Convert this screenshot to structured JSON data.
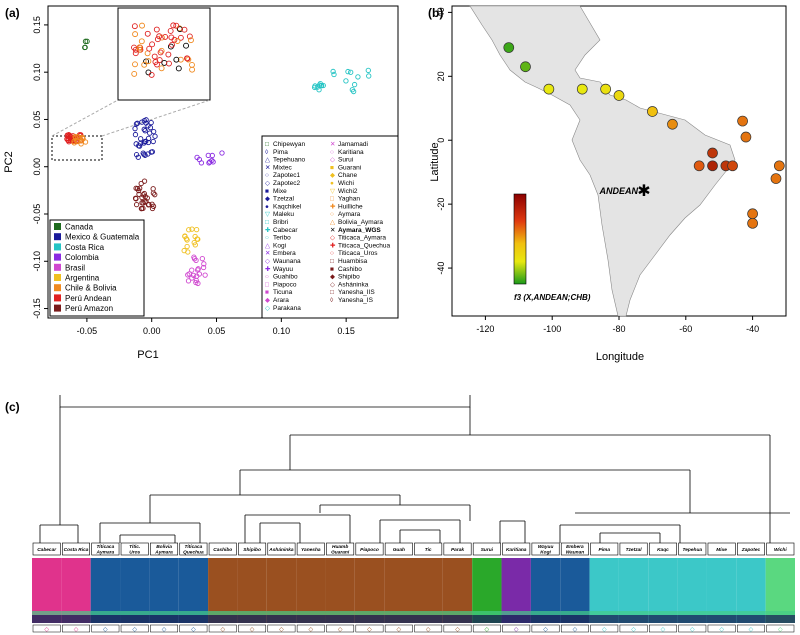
{
  "figure": {
    "panels": [
      {
        "label": "(a)",
        "type": "scatter",
        "xlabel": "PC1",
        "ylabel": "PC2",
        "xlim": [
          -0.08,
          0.19
        ],
        "ylim": [
          -0.16,
          0.17
        ],
        "x_ticks": [
          "-0.05",
          "0.00",
          "0.05",
          "0.10",
          "0.15"
        ],
        "y_ticks": [
          "0.15",
          "0.10",
          "0.05",
          "0.00",
          "-0.05",
          "-0.10",
          "-0.15"
        ],
        "region_legend": [
          {
            "name": "Canada",
            "color": "#1e6b1e"
          },
          {
            "name": "Mexico & Guatemala",
            "color": "#1a1a9a"
          },
          {
            "name": "Costa Rica",
            "color": "#24c4c4"
          },
          {
            "name": "Colombia",
            "color": "#8a2be2"
          },
          {
            "name": "Brasil",
            "color": "#d048d0"
          },
          {
            "name": "Argentina",
            "color": "#f0c020"
          },
          {
            "name": "Chile & Bolivia",
            "color": "#f08a20"
          },
          {
            "name": "Perú Andean",
            "color": "#e02020"
          },
          {
            "name": "Perú Amazon",
            "color": "#7a1a1a"
          }
        ],
        "population_legend_col1": [
          "Chipewyan",
          "Pima",
          "Tepehuano",
          "Mixtec",
          "Zapotec1",
          "Zapotec2",
          "Mixe",
          "Tzetzal",
          "Kaqchikel",
          "Maleku",
          "Bribri",
          "Cabecar",
          "Teribo",
          "Kogi",
          "Embera",
          "Waunana",
          "Wayuu",
          "Guahibo",
          "Piapoco",
          "Ticuna",
          "Arara",
          "Parakana"
        ],
        "population_legend_col2": [
          "Jamamadi",
          "Karitiana",
          "Surui",
          "Guarani",
          "Chane",
          "Wichi",
          "Wichi2",
          "Yaghan",
          "Huilliche",
          "Aymara",
          "Bolivia_Aymara",
          "Aymara_WGS",
          "Titicaca_Aymara",
          "Titicaca_Quechua",
          "Titicaca_Uros",
          "Huambisa",
          "Cashibo",
          "Shipibo",
          "Asháninka",
          "Yanesha_IIS",
          "Yanesha_IS"
        ]
      },
      {
        "label": "(b)",
        "type": "map",
        "xlabel": "Longitude",
        "ylabel": "Latitude",
        "x_ticks": [
          "-120",
          "-100",
          "-80",
          "-60",
          "-40"
        ],
        "y_ticks": [
          "40",
          "20",
          "0",
          "-20",
          "-40"
        ],
        "marker_label": "ANDEAN",
        "colorbar_label": "f3 (X,ANDEAN;CHB)",
        "points": [
          {
            "lon": -113,
            "lat": 29,
            "f3": 0.05
          },
          {
            "lon": -108,
            "lat": 23,
            "f3": 0.1
          },
          {
            "lon": -101,
            "lat": 16,
            "f3": 0.3
          },
          {
            "lon": -91,
            "lat": 16,
            "f3": 0.3
          },
          {
            "lon": -84,
            "lat": 16,
            "f3": 0.35
          },
          {
            "lon": -80,
            "lat": 14,
            "f3": 0.4
          },
          {
            "lon": -70,
            "lat": 9,
            "f3": 0.55
          },
          {
            "lon": -64,
            "lat": 5,
            "f3": 0.65
          },
          {
            "lon": -43,
            "lat": 6,
            "f3": 0.7
          },
          {
            "lon": -42,
            "lat": 1,
            "f3": 0.7
          },
          {
            "lon": -52,
            "lat": -4,
            "f3": 0.85
          },
          {
            "lon": -56,
            "lat": -8,
            "f3": 0.75
          },
          {
            "lon": -52,
            "lat": -8,
            "f3": 0.9
          },
          {
            "lon": -48,
            "lat": -8,
            "f3": 0.85
          },
          {
            "lon": -46,
            "lat": -8,
            "f3": 0.8
          },
          {
            "lon": -32,
            "lat": -8,
            "f3": 0.7
          },
          {
            "lon": -33,
            "lat": -12,
            "f3": 0.7
          },
          {
            "lon": -40,
            "lat": -23,
            "f3": 0.7
          },
          {
            "lon": -40,
            "lat": -26,
            "f3": 0.7
          }
        ]
      },
      {
        "label": "(c)",
        "type": "dendrogram-admixture",
        "group_labels": [
          {
            "name": "Cabecar",
            "line2": ""
          },
          {
            "name": "Costa Rica",
            "line2": ""
          },
          {
            "name": "Titicaca",
            "line2": "Aymara"
          },
          {
            "name": "Titic.",
            "line2": "Uros"
          },
          {
            "name": "Bolivia",
            "line2": "Aymara"
          },
          {
            "name": "Titicaca",
            "line2": "Quechua"
          },
          {
            "name": "Cashibo",
            "line2": ""
          },
          {
            "name": "Shipibo",
            "line2": ""
          },
          {
            "name": "Asháninka",
            "line2": ""
          },
          {
            "name": "Yanesha",
            "line2": ""
          },
          {
            "name": "Huamb",
            "line2": "Guarani"
          },
          {
            "name": "Piapoco",
            "line2": ""
          },
          {
            "name": "Guah",
            "line2": ""
          },
          {
            "name": "Tic",
            "line2": ""
          },
          {
            "name": "Parak",
            "line2": ""
          },
          {
            "name": "Surui",
            "line2": ""
          },
          {
            "name": "Karitiana",
            "line2": ""
          },
          {
            "name": "Wayuu",
            "line2": "Kogi"
          },
          {
            "name": "Embera",
            "line2": "Waunan"
          },
          {
            "name": "Pima",
            "line2": ""
          },
          {
            "name": "Tzetzal",
            "line2": ""
          },
          {
            "name": "Kaqc",
            "line2": ""
          },
          {
            "name": "Tepehua",
            "line2": ""
          },
          {
            "name": "Mixe",
            "line2": ""
          },
          {
            "name": "Zapotec",
            "line2": ""
          },
          {
            "name": "Wichi",
            "line2": ""
          }
        ]
      }
    ]
  }
}
